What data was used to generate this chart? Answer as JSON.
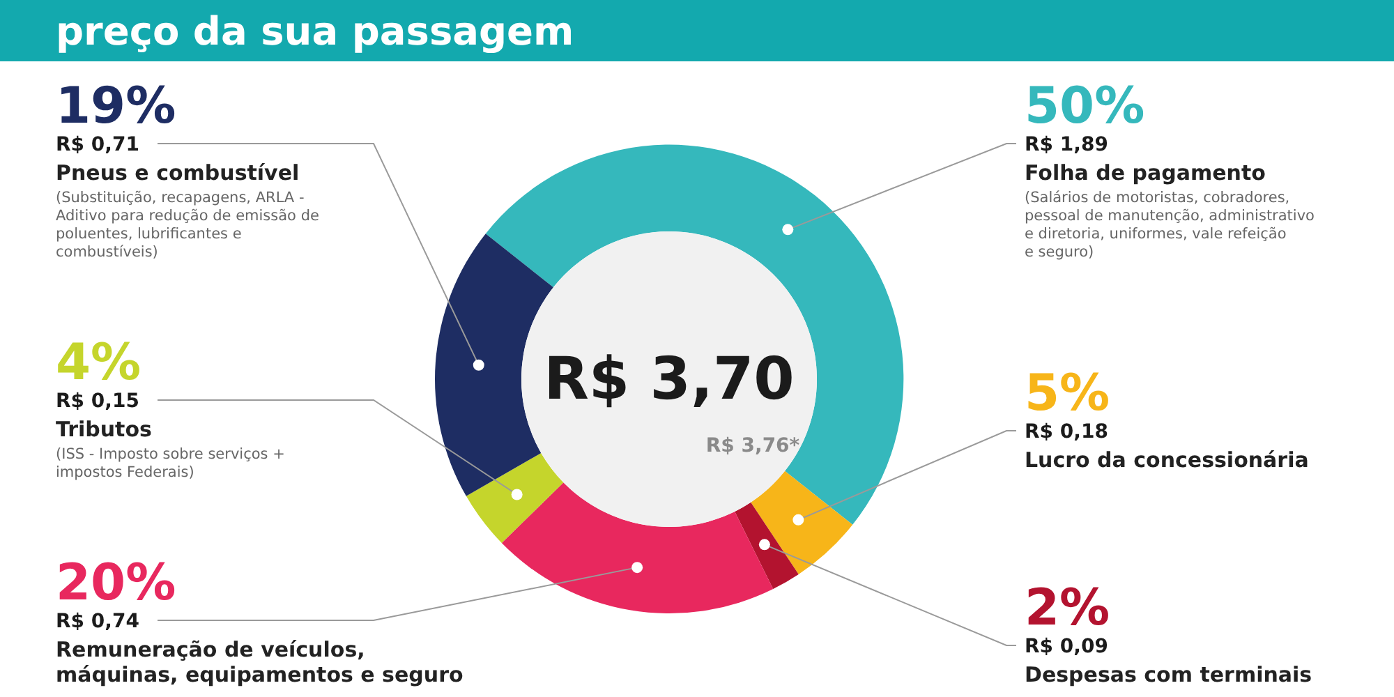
{
  "chart_data": {
    "type": "donut",
    "title": "preço da sua passagem",
    "categories": [
      "Folha de pagamento",
      "Lucro da concessionária",
      "Despesas com terminais",
      "Remuneração de veículos, máquinas, equipamentos e seguro",
      "Tributos",
      "Pneus e combustível"
    ],
    "values": [
      50,
      5,
      2,
      20,
      4,
      19
    ],
    "colors": [
      "#35b8bc",
      "#f7b519",
      "#b3132f",
      "#e8285e",
      "#c5d52c",
      "#1e2d63"
    ],
    "value_labels": [
      "50%",
      "5%",
      "2%",
      "20%",
      "4%",
      "19%"
    ],
    "annotations": [
      {
        "text": "R$ 1,89",
        "x": "Folha de pagamento"
      },
      {
        "text": "R$ 0,18",
        "x": "Lucro da concessionária"
      },
      {
        "text": "R$ 0,09",
        "x": "Despesas com terminais"
      },
      {
        "text": "R$ 0,74",
        "x": "Remuneração de veículos, máquinas, equipamentos e seguro"
      },
      {
        "text": "R$ 0,15",
        "x": "Tributos"
      },
      {
        "text": "R$ 0,71",
        "x": "Pneus e combustível"
      },
      {
        "text": "(Salários de motoristas, cobradores, pessoal de manutenção, administrativo e diretoria, uniformes, vale refeição e seguro)",
        "x": "Folha de pagamento"
      },
      {
        "text": "(ISS - Imposto sobre serviços + impostos Federais)",
        "x": "Tributos"
      },
      {
        "text": "(Substituição, recapagens, ARLA - Aditivo para redução de emissão de poluentes, lubrificantes e combustíveis)",
        "x": "Pneus e combustível"
      },
      "R$ 3,70",
      "R$ 3,76*"
    ]
  }
}
